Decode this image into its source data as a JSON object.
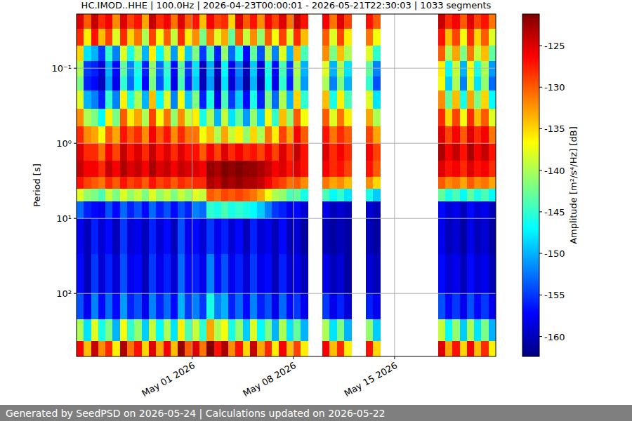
{
  "chart_data": {
    "type": "heatmap",
    "title": "HC.IMOD..HHE | 100.0Hz | 2026-04-23T00:00:01 - 2026-05-21T22:30:03 | 1033 segments",
    "ylabel": "Period [s]",
    "footer": "Generated by SeedPSD on 2026-05-24 | Calculations updated on 2026-05-22",
    "log": "y",
    "grid": true,
    "xlim": [
      "2026-04-23T00:00",
      "2026-05-22T00:00"
    ],
    "xticks": [
      {
        "value": "2026-05-01T00:00",
        "label": "May 01 2026"
      },
      {
        "value": "2026-05-08T00:00",
        "label": "May 08 2026"
      },
      {
        "value": "2026-05-15T00:00",
        "label": "May 15 2026"
      }
    ],
    "ylim": [
      0.019,
      690
    ],
    "yticks": [
      {
        "value": 0.1,
        "label": "10⁻¹"
      },
      {
        "value": 1,
        "label": "10⁰"
      },
      {
        "value": 10,
        "label": "10¹"
      },
      {
        "value": 100,
        "label": "10²"
      }
    ],
    "x_edges": [
      "2026-04-23T00:00",
      "2026-04-23T12:00",
      "2026-04-24T00:00",
      "2026-04-24T12:00",
      "2026-04-25T00:00",
      "2026-04-25T12:00",
      "2026-04-26T00:00",
      "2026-04-26T12:00",
      "2026-04-27T00:00",
      "2026-04-27T12:00",
      "2026-04-28T00:00",
      "2026-04-28T12:00",
      "2026-04-29T00:00",
      "2026-04-29T12:00",
      "2026-04-30T00:00",
      "2026-04-30T12:00",
      "2026-05-01T00:00",
      "2026-05-01T12:00",
      "2026-05-02T00:00",
      "2026-05-02T12:00",
      "2026-05-03T00:00",
      "2026-05-03T12:00",
      "2026-05-04T00:00",
      "2026-05-04T12:00",
      "2026-05-05T00:00",
      "2026-05-05T12:00",
      "2026-05-06T00:00",
      "2026-05-06T12:00",
      "2026-05-07T00:00",
      "2026-05-07T12:00",
      "2026-05-08T00:00",
      "2026-05-08T12:00",
      "2026-05-09T00:00",
      "2026-05-09T12:00",
      "2026-05-10T00:00",
      "2026-05-10T12:00",
      "2026-05-11T00:00",
      "2026-05-11T12:00",
      "2026-05-12T00:00",
      "2026-05-12T12:00",
      "2026-05-13T00:00",
      "2026-05-13T12:00",
      "2026-05-14T00:00",
      "2026-05-14T12:00",
      "2026-05-15T00:00",
      "2026-05-15T12:00",
      "2026-05-16T00:00",
      "2026-05-16T12:00",
      "2026-05-17T00:00",
      "2026-05-17T12:00",
      "2026-05-18T00:00",
      "2026-05-18T12:00",
      "2026-05-19T00:00",
      "2026-05-19T12:00",
      "2026-05-20T00:00",
      "2026-05-20T12:00",
      "2026-05-21T00:00",
      "2026-05-21T12:00",
      "2026-05-22T00:00"
    ],
    "y_edges": [
      0.019,
      0.03,
      0.05,
      0.08,
      0.13,
      0.2,
      0.35,
      0.6,
      1,
      1.7,
      2.8,
      4,
      6,
      10,
      30,
      100,
      220,
      430,
      690
    ],
    "cells": [
      [
        -125,
        -130,
        -124,
        -128,
        -126,
        -132,
        -125,
        -129,
        -127,
        -133,
        -124,
        -128,
        -126,
        -131,
        -125,
        -130,
        -127,
        -134,
        -126,
        -129,
        -128,
        -135,
        -125,
        -130,
        -127,
        -132,
        -126,
        -129,
        -125,
        -131,
        -124,
        -127,
        null,
        null,
        -126,
        -131,
        -125,
        -129,
        null,
        null,
        -127,
        -130,
        null,
        null,
        null,
        null,
        null,
        null,
        null,
        null,
        -124,
        -128,
        -126,
        -130,
        -125,
        -129,
        -127,
        -131
      ],
      [
        -128,
        -136,
        -127,
        -134,
        -129,
        -138,
        -128,
        -135,
        -131,
        -140,
        -129,
        -137,
        -130,
        -139,
        -128,
        -136,
        -132,
        -142,
        -131,
        -138,
        -133,
        -143,
        -130,
        -139,
        -132,
        -141,
        -130,
        -137,
        -129,
        -138,
        -128,
        -134,
        null,
        null,
        -130,
        -138,
        -129,
        -136,
        null,
        null,
        -131,
        -137,
        null,
        null,
        null,
        null,
        null,
        null,
        null,
        null,
        -127,
        -134,
        -129,
        -137,
        -128,
        -135,
        -130,
        -138
      ],
      [
        -135,
        -148,
        -150,
        -155,
        -145,
        -152,
        -138,
        -146,
        -140,
        -150,
        -136,
        -147,
        -139,
        -151,
        -137,
        -149,
        -142,
        -155,
        -144,
        -156,
        -141,
        -153,
        -146,
        -157,
        -143,
        -154,
        -140,
        -152,
        -138,
        -150,
        -134,
        -144,
        null,
        null,
        -132,
        -142,
        -134,
        -140,
        null,
        null,
        -138,
        -145,
        null,
        null,
        null,
        null,
        null,
        null,
        null,
        null,
        -130,
        -140,
        -133,
        -142,
        -131,
        -139,
        -134,
        -143
      ],
      [
        -140,
        -155,
        -156,
        -159,
        -150,
        -157,
        -143,
        -152,
        -146,
        -156,
        -141,
        -153,
        -145,
        -157,
        -143,
        -155,
        -148,
        -160,
        -150,
        -160,
        -147,
        -158,
        -152,
        -160,
        -149,
        -159,
        -146,
        -157,
        -144,
        -155,
        -140,
        -150,
        null,
        null,
        -138,
        -150,
        -140,
        -148,
        null,
        null,
        -143,
        -152,
        null,
        null,
        null,
        null,
        null,
        null,
        null,
        null,
        -136,
        -147,
        -139,
        -150,
        -137,
        -146,
        -140,
        -151
      ],
      [
        -142,
        -156,
        -157,
        -160,
        -151,
        -158,
        -145,
        -153,
        -147,
        -157,
        -142,
        -154,
        -146,
        -158,
        -144,
        -156,
        -149,
        -160,
        -151,
        -161,
        -148,
        -159,
        -153,
        -161,
        -150,
        -160,
        -147,
        -158,
        -145,
        -156,
        -141,
        -151,
        null,
        null,
        -140,
        -152,
        -142,
        -150,
        null,
        null,
        -145,
        -154,
        null,
        null,
        null,
        null,
        null,
        null,
        null,
        null,
        -137,
        -149,
        -140,
        -152,
        -138,
        -148,
        -141,
        -153
      ],
      [
        -138,
        -150,
        -152,
        -156,
        -145,
        -152,
        -136,
        -146,
        -140,
        -150,
        -134,
        -147,
        -138,
        -152,
        -137,
        -149,
        -142,
        -156,
        -146,
        -158,
        -144,
        -155,
        -149,
        -157,
        -146,
        -156,
        -142,
        -153,
        -140,
        -150,
        -135,
        -145,
        null,
        null,
        -134,
        -146,
        -136,
        -144,
        null,
        null,
        -138,
        -148,
        null,
        null,
        null,
        null,
        null,
        null,
        null,
        null,
        -132,
        -143,
        -134,
        -146,
        -133,
        -142,
        -135,
        -147
      ],
      [
        -132,
        -140,
        -142,
        -147,
        -136,
        -142,
        -130,
        -136,
        -133,
        -140,
        -129,
        -137,
        -131,
        -141,
        -132,
        -139,
        -136,
        -146,
        -140,
        -150,
        -139,
        -148,
        -143,
        -151,
        -141,
        -149,
        -137,
        -145,
        -134,
        -141,
        -130,
        -137,
        null,
        null,
        -130,
        -138,
        -131,
        -136,
        null,
        null,
        -133,
        -140,
        null,
        null,
        null,
        null,
        null,
        null,
        null,
        null,
        -128,
        -135,
        -129,
        -137,
        -128,
        -134,
        -130,
        -138
      ],
      [
        -128,
        -132,
        -133,
        -137,
        -130,
        -133,
        -127,
        -130,
        -128,
        -132,
        -126,
        -130,
        -127,
        -132,
        -128,
        -131,
        -131,
        -137,
        -134,
        -140,
        -133,
        -139,
        -136,
        -141,
        -135,
        -140,
        -131,
        -136,
        -129,
        -133,
        -126,
        -130,
        null,
        null,
        -127,
        -131,
        -128,
        -130,
        null,
        null,
        -129,
        -133,
        null,
        null,
        null,
        null,
        null,
        null,
        null,
        null,
        -125,
        -129,
        -126,
        -130,
        -125,
        -128,
        -126,
        -131
      ],
      [
        -125,
        -128,
        -128,
        -131,
        -126,
        -129,
        -124,
        -127,
        -125,
        -128,
        -124,
        -127,
        -125,
        -128,
        -125,
        -127,
        -127,
        -130,
        -126,
        -129,
        -125,
        -128,
        -126,
        -128,
        -127,
        -129,
        -126,
        -129,
        -125,
        -128,
        -124,
        -127,
        null,
        null,
        -125,
        -128,
        -126,
        -128,
        null,
        null,
        -126,
        -129,
        null,
        null,
        null,
        null,
        null,
        null,
        null,
        null,
        -123,
        -126,
        -124,
        -127,
        -123,
        -126,
        -124,
        -127
      ],
      [
        -124,
        -126,
        -126,
        -128,
        -124,
        -126,
        -123,
        -125,
        -124,
        -126,
        -123,
        -125,
        -124,
        -126,
        -124,
        -125,
        -125,
        -126,
        -122,
        -123,
        -121,
        -122,
        -121,
        -122,
        -122,
        -123,
        -124,
        -126,
        -125,
        -127,
        -125,
        -127,
        null,
        null,
        -126,
        -128,
        -127,
        -129,
        null,
        null,
        -127,
        -130,
        null,
        null,
        null,
        null,
        null,
        null,
        null,
        null,
        -125,
        -127,
        -126,
        -128,
        -125,
        -127,
        -126,
        -128
      ],
      [
        -127,
        -129,
        -130,
        -131,
        -128,
        -130,
        -127,
        -129,
        -128,
        -130,
        -127,
        -129,
        -128,
        -130,
        -128,
        -129,
        -128,
        -128,
        -123,
        -124,
        -122,
        -123,
        -122,
        -123,
        -123,
        -124,
        -126,
        -128,
        -129,
        -131,
        -130,
        -132,
        null,
        null,
        -131,
        -133,
        -132,
        -134,
        null,
        null,
        -132,
        -135,
        null,
        null,
        null,
        null,
        null,
        null,
        null,
        null,
        -130,
        -132,
        -131,
        -133,
        -130,
        -132,
        -131,
        -133
      ],
      [
        -138,
        -141,
        -142,
        -144,
        -139,
        -142,
        -138,
        -141,
        -139,
        -142,
        -138,
        -141,
        -139,
        -142,
        -139,
        -141,
        -138,
        -139,
        -130,
        -131,
        -129,
        -130,
        -129,
        -130,
        -131,
        -133,
        -137,
        -140,
        -141,
        -144,
        -143,
        -146,
        null,
        null,
        -144,
        -147,
        -145,
        -148,
        null,
        null,
        -146,
        -149,
        null,
        null,
        null,
        null,
        null,
        null,
        null,
        null,
        -143,
        -146,
        -144,
        -147,
        -143,
        -146,
        -144,
        -147
      ],
      [
        -153,
        -156,
        -157,
        -158,
        -154,
        -157,
        -153,
        -156,
        -154,
        -157,
        -153,
        -156,
        -154,
        -157,
        -154,
        -156,
        -152,
        -153,
        -145,
        -146,
        -144,
        -146,
        -145,
        -146,
        -147,
        -149,
        -152,
        -155,
        -156,
        -158,
        -157,
        -159,
        null,
        null,
        -158,
        -160,
        -159,
        -160,
        null,
        null,
        -159,
        -160,
        null,
        null,
        null,
        null,
        null,
        null,
        null,
        null,
        -157,
        -159,
        -158,
        -160,
        -157,
        -159,
        -158,
        -160
      ],
      [
        -158,
        -160,
        -156,
        -159,
        -157,
        -160,
        -155,
        -159,
        -158,
        -160,
        -156,
        -159,
        -157,
        -160,
        -154,
        -158,
        -157,
        -159,
        -155,
        -158,
        -156,
        -159,
        -157,
        -160,
        -156,
        -159,
        -158,
        -160,
        -157,
        -160,
        -159,
        -161,
        null,
        null,
        -160,
        -161,
        -160,
        -161,
        null,
        null,
        -160,
        -161,
        null,
        null,
        null,
        null,
        null,
        null,
        null,
        null,
        -158,
        -160,
        -159,
        -161,
        -158,
        -160,
        -159,
        -161
      ],
      [
        -157,
        -160,
        -155,
        -159,
        -156,
        -159,
        -154,
        -158,
        -157,
        -160,
        -155,
        -158,
        -156,
        -159,
        -153,
        -157,
        -156,
        -158,
        -152,
        -157,
        -154,
        -158,
        -156,
        -159,
        -155,
        -158,
        -157,
        -160,
        -156,
        -159,
        -158,
        -160,
        null,
        null,
        -158,
        -160,
        -159,
        -161,
        null,
        null,
        -159,
        -160,
        null,
        null,
        null,
        null,
        null,
        null,
        null,
        null,
        -157,
        -159,
        -158,
        -160,
        -157,
        -159,
        -158,
        -160
      ],
      [
        -154,
        -158,
        -152,
        -157,
        -153,
        -157,
        -151,
        -156,
        -154,
        -158,
        -152,
        -156,
        -153,
        -157,
        -150,
        -155,
        -152,
        -155,
        -146,
        -152,
        -150,
        -156,
        -153,
        -157,
        -152,
        -156,
        -154,
        -158,
        -153,
        -157,
        -155,
        -158,
        null,
        null,
        -155,
        -158,
        -156,
        -159,
        null,
        null,
        -156,
        -158,
        null,
        null,
        null,
        null,
        null,
        null,
        null,
        null,
        -154,
        -157,
        -155,
        -158,
        -154,
        -157,
        -155,
        -158
      ],
      [
        -140,
        -148,
        -138,
        -146,
        -142,
        -150,
        -137,
        -145,
        -141,
        -149,
        -139,
        -147,
        -140,
        -148,
        -136,
        -144,
        -139,
        -145,
        -133,
        -140,
        -137,
        -146,
        -141,
        -149,
        -138,
        -147,
        -142,
        -150,
        -140,
        -148,
        -143,
        -150,
        null,
        null,
        -140,
        -148,
        -142,
        -150,
        null,
        null,
        -141,
        -149,
        null,
        null,
        null,
        null,
        null,
        null,
        null,
        null,
        -139,
        -147,
        -141,
        -149,
        -140,
        -148,
        -142,
        -150
      ],
      [
        -126,
        -134,
        -124,
        -132,
        -128,
        -136,
        -123,
        -131,
        -127,
        -135,
        -125,
        -133,
        -126,
        -134,
        -122,
        -130,
        -125,
        -131,
        -121,
        -127,
        -123,
        -132,
        -127,
        -135,
        -124,
        -133,
        -128,
        -136,
        -126,
        -134,
        -129,
        -136,
        null,
        null,
        -126,
        -134,
        -128,
        -136,
        null,
        null,
        -127,
        -135,
        null,
        null,
        null,
        null,
        null,
        null,
        null,
        null,
        -125,
        -133,
        -127,
        -135,
        -126,
        -134,
        -128,
        -136
      ]
    ],
    "colorbar": {
      "label": "Amplitude [m²/s⁴/Hz] [dB]",
      "range": [
        -162.4,
        -121.2
      ],
      "ticks": [
        -160,
        -155,
        -150,
        -145,
        -140,
        -135,
        -130,
        -125
      ]
    }
  }
}
